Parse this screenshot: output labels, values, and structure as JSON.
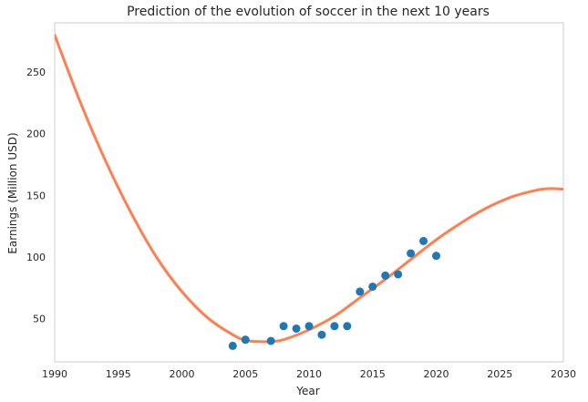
{
  "chart_data": {
    "type": "scatter",
    "title": "Prediction of the evolution of soccer in the next 10 years",
    "xlabel": "Year",
    "ylabel": "Earnings (Million USD)",
    "xlim": [
      1990,
      2030
    ],
    "ylim": [
      15,
      290
    ],
    "x_ticks": [
      1990,
      1995,
      2000,
      2005,
      2010,
      2015,
      2020,
      2025,
      2030
    ],
    "y_ticks": [
      50,
      100,
      150,
      200,
      250
    ],
    "grid": false,
    "colors": {
      "points": "#1f77b4",
      "fit_line": "#ff7f50",
      "frame": "#cccccc"
    },
    "series": [
      {
        "kind": "points",
        "x": [
          2004,
          2005,
          2007,
          2008,
          2009,
          2010,
          2011,
          2012,
          2013,
          2014,
          2015,
          2016,
          2017,
          2018,
          2019,
          2020
        ],
        "y": [
          28,
          33,
          32,
          44,
          42,
          44,
          37,
          44,
          44,
          72,
          76,
          85,
          86,
          103,
          113,
          101
        ]
      },
      {
        "kind": "fit_line",
        "x": [
          1990,
          1992,
          1994,
          1996,
          1998,
          2000,
          2002,
          2004,
          2005,
          2006,
          2007,
          2008,
          2010,
          2012,
          2014,
          2016,
          2018,
          2020,
          2022,
          2024,
          2026,
          2028,
          2029,
          2030
        ],
        "y": [
          280,
          226,
          178,
          136,
          100,
          72,
          51,
          37,
          32.5,
          31.5,
          31.5,
          33,
          41,
          52,
          67,
          82,
          98,
          114,
          128,
          140,
          149,
          154.5,
          155.5,
          155
        ]
      }
    ]
  }
}
